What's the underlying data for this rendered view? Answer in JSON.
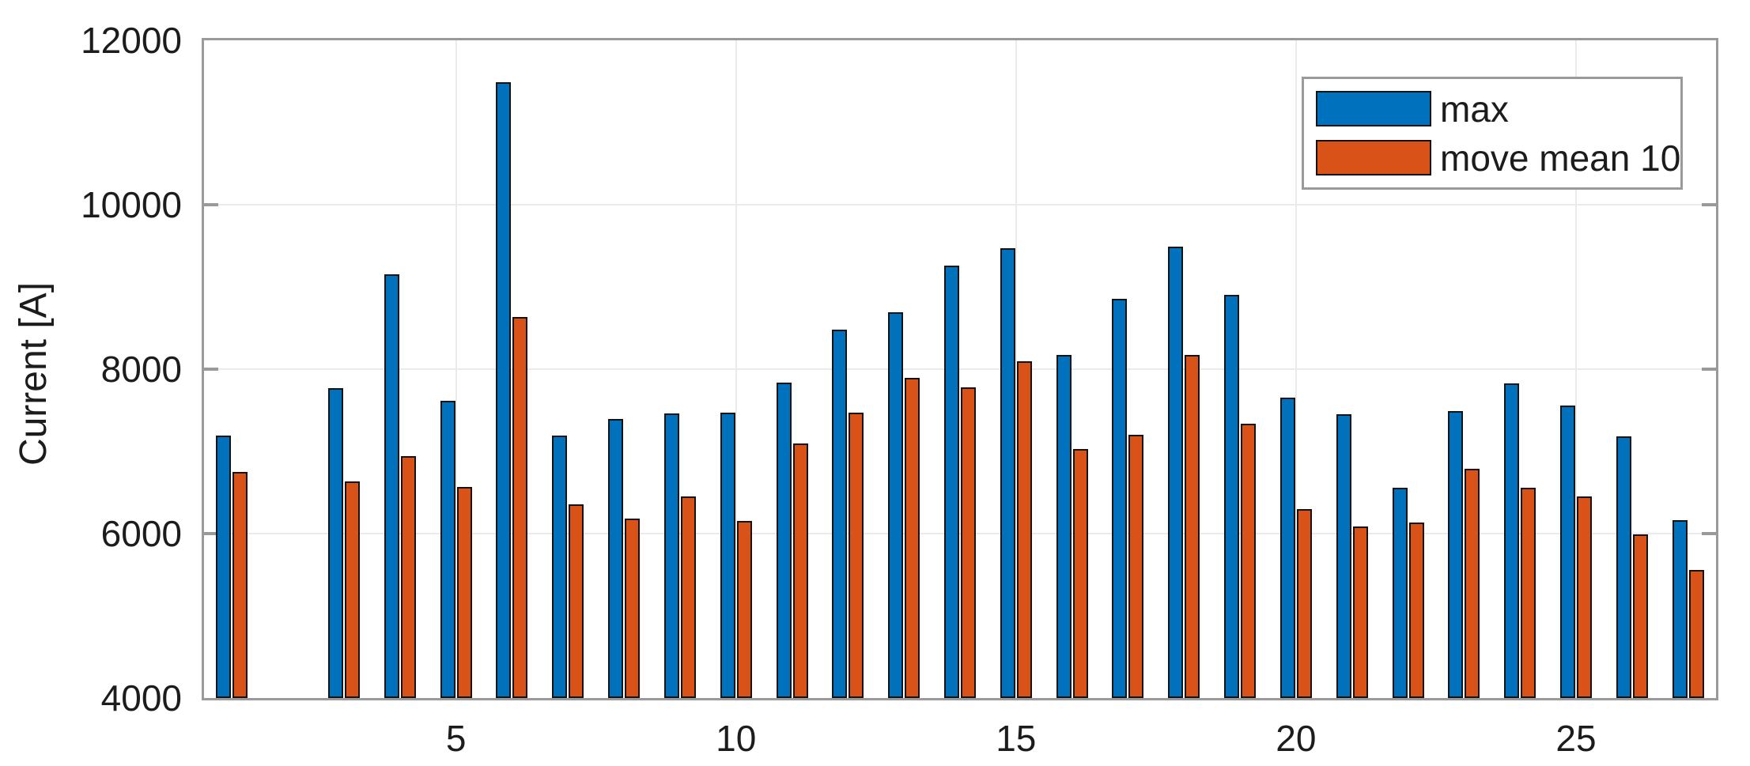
{
  "chart_data": {
    "type": "bar",
    "title": "",
    "xlabel": "",
    "ylabel": "Current [A]",
    "categories": [
      1,
      2,
      3,
      4,
      5,
      6,
      7,
      8,
      9,
      10,
      11,
      12,
      13,
      14,
      15,
      16,
      17,
      18,
      19,
      20,
      21,
      22,
      23,
      24,
      25,
      26,
      27
    ],
    "series": [
      {
        "name": "max",
        "color": "#0072BD",
        "values": [
          7190,
          null,
          7770,
          9150,
          7620,
          11490,
          7190,
          7390,
          7460,
          7470,
          7840,
          8480,
          8690,
          9260,
          9470,
          8170,
          8860,
          9490,
          8900,
          7650,
          7450,
          6560,
          7490,
          7830,
          7560,
          7180,
          6160
        ]
      },
      {
        "name": "move mean 10",
        "color": "#D95319",
        "values": [
          6750,
          null,
          6630,
          6940,
          6570,
          8630,
          6360,
          6180,
          6450,
          6150,
          7100,
          7470,
          7890,
          7780,
          8100,
          7030,
          7200,
          8170,
          7340,
          6300,
          6090,
          6130,
          6790,
          6560,
          6450,
          5990,
          5560
        ]
      }
    ],
    "ylim": [
      4000,
      12000
    ],
    "yticks": [
      4000,
      6000,
      8000,
      10000,
      12000
    ],
    "xticks": [
      5,
      10,
      15,
      20,
      25
    ],
    "grid": true,
    "legend_position": "top-right",
    "colors": {
      "axis": "#9a9a9a",
      "grid": "#ebebeb",
      "bar_edge": "#131313",
      "tick_label": "#1c1c1c",
      "background": "#ffffff"
    }
  },
  "legend": {
    "items": [
      {
        "label": "max"
      },
      {
        "label": "move mean 10"
      }
    ]
  }
}
